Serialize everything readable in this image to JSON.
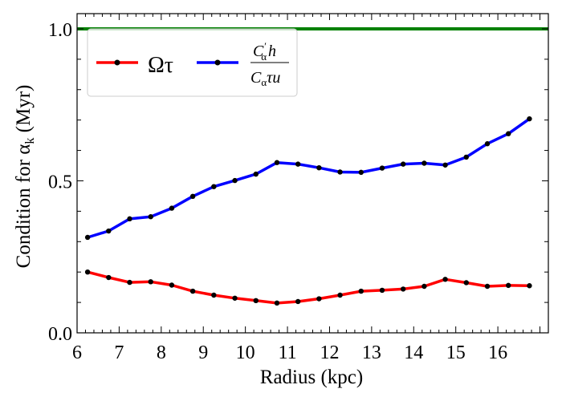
{
  "chart_data": {
    "type": "line",
    "xlabel": "Radius (kpc)",
    "ylabel": {
      "prefix": "Condition for α",
      "sub": "k",
      "suffix": " (Myr)"
    },
    "xlim": [
      6,
      17.2
    ],
    "ylim": [
      0,
      1.05
    ],
    "xticks": [
      6,
      7,
      8,
      9,
      10,
      11,
      12,
      13,
      14,
      15,
      16
    ],
    "yticks": [
      0.0,
      0.5,
      1.0
    ],
    "ytick_labels": [
      "0.0",
      "0.5",
      "1.0"
    ],
    "hline": {
      "y": 1.0,
      "color": "#008000"
    },
    "legend_placement": "top-left",
    "x": [
      6.25,
      6.75,
      7.25,
      7.75,
      8.25,
      8.75,
      9.25,
      9.75,
      10.25,
      10.75,
      11.25,
      11.75,
      12.25,
      12.75,
      13.25,
      13.75,
      14.25,
      14.75,
      15.25,
      15.75,
      16.25,
      16.75
    ],
    "series": [
      {
        "name": "Ωτ",
        "color": "#ff0000",
        "values": [
          0.2,
          0.182,
          0.166,
          0.168,
          0.157,
          0.137,
          0.124,
          0.114,
          0.106,
          0.098,
          0.103,
          0.112,
          0.124,
          0.137,
          0.14,
          0.144,
          0.153,
          0.176,
          0.165,
          0.153,
          0.156,
          0.155
        ]
      },
      {
        "name": "C′αh / Cατu",
        "legend_math": {
          "num_main": "C",
          "num_prime": "′",
          "num_sub": "α",
          "num_tail": "h",
          "den_main": "C",
          "den_sub": "α",
          "den_tail": "τu"
        },
        "color": "#0000ff",
        "values": [
          0.314,
          0.335,
          0.375,
          0.382,
          0.41,
          0.449,
          0.481,
          0.501,
          0.522,
          0.56,
          0.555,
          0.543,
          0.529,
          0.528,
          0.542,
          0.555,
          0.558,
          0.552,
          0.578,
          0.622,
          0.655,
          0.704
        ]
      }
    ]
  }
}
